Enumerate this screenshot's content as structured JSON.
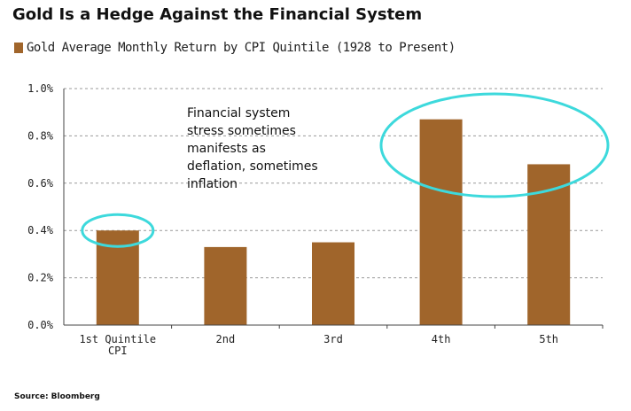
{
  "title": "Gold Is a Hedge Against the Financial System",
  "source": "Source: Bloomberg",
  "colors": {
    "bar": "#A0652B",
    "highlight": "#3DD9DC",
    "grid": "#999999"
  },
  "chart_data": {
    "type": "bar",
    "categories": [
      "1st Quintile CPI",
      "2nd",
      "3rd",
      "4th",
      "5th"
    ],
    "category_lines": [
      [
        "1st Quintile",
        "CPI"
      ],
      [
        "2nd"
      ],
      [
        "3rd"
      ],
      [
        "4th"
      ],
      [
        "5th"
      ]
    ],
    "series": [
      {
        "name": "Gold Average Monthly Return by CPI Quintile (1928 to Present)",
        "values": [
          0.4,
          0.33,
          0.35,
          0.87,
          0.68
        ]
      }
    ],
    "yticks": [
      "0.0%",
      "0.2%",
      "0.4%",
      "0.6%",
      "0.8%",
      "1.0%"
    ],
    "ylim": [
      0,
      1.0
    ],
    "grid": true,
    "legend_placement": "top-left",
    "annotation": [
      "Financial system",
      "stress sometimes",
      "manifests as",
      "deflation, sometimes",
      "inflation"
    ],
    "highlighted_categories": [
      "1st Quintile CPI",
      "4th",
      "5th"
    ]
  }
}
